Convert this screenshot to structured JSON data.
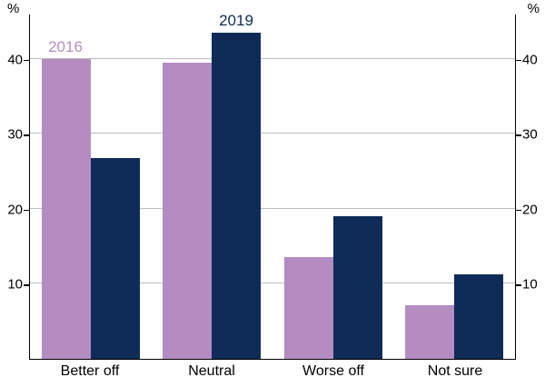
{
  "chart_data": {
    "type": "bar",
    "categories": [
      "Better off",
      "Neutral",
      "Worse off",
      "Not sure"
    ],
    "series": [
      {
        "name": "2016",
        "color": "#b48cc2",
        "values": [
          40.0,
          39.5,
          13.5,
          7.2
        ]
      },
      {
        "name": "2019",
        "color": "#0f2b57",
        "values": [
          26.7,
          43.4,
          19.0,
          11.2
        ]
      }
    ],
    "title": "",
    "xlabel": "",
    "ylabel_left": "%",
    "ylabel_right": "%",
    "yticks": [
      10,
      20,
      30,
      40
    ],
    "ylim": [
      0,
      46
    ],
    "grid": true,
    "gridline_color": "#bdbdbd",
    "axis_color": "#000000",
    "annotations": [
      {
        "text": "2016",
        "color": "#b48cc2",
        "category": 0,
        "series": 0
      },
      {
        "text": "2019",
        "color": "#0f2b57",
        "category": 1,
        "series": 1
      }
    ]
  }
}
